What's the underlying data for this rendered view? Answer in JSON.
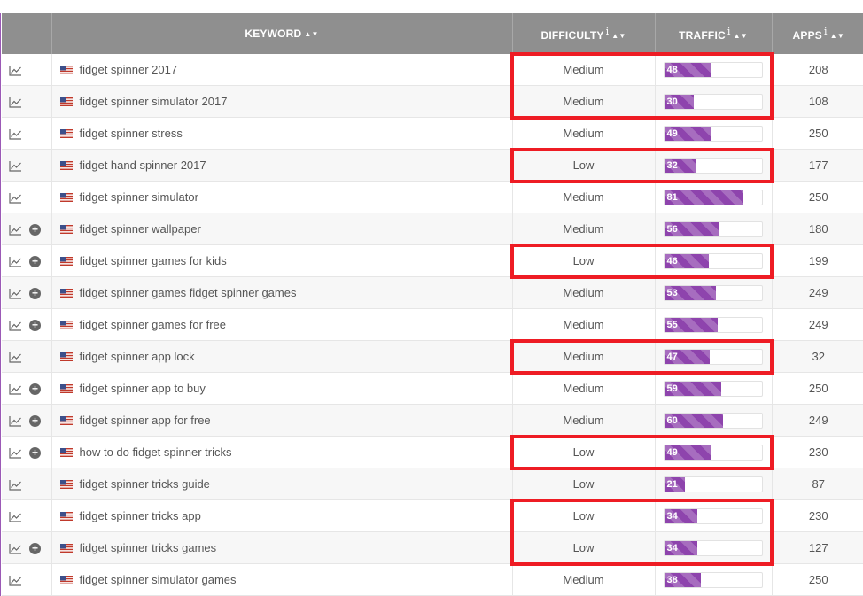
{
  "table": {
    "headers": {
      "keyword": "KEYWORD",
      "difficulty": "DIFFICULTY",
      "traffic": "TRAFFIC",
      "apps": "APPS",
      "info_glyph": "i",
      "sort_glyph": "▲▼"
    },
    "rows": [
      {
        "keyword": "fidget spinner 2017",
        "difficulty": "Medium",
        "traffic": 48,
        "apps": "208",
        "has_add": false,
        "highlighted": true
      },
      {
        "keyword": "fidget spinner simulator 2017",
        "difficulty": "Medium",
        "traffic": 30,
        "apps": "108",
        "has_add": false,
        "highlighted": true
      },
      {
        "keyword": "fidget spinner stress",
        "difficulty": "Medium",
        "traffic": 49,
        "apps": "250",
        "has_add": false,
        "highlighted": false
      },
      {
        "keyword": "fidget hand spinner 2017",
        "difficulty": "Low",
        "traffic": 32,
        "apps": "177",
        "has_add": false,
        "highlighted": true
      },
      {
        "keyword": "fidget spinner simulator",
        "difficulty": "Medium",
        "traffic": 81,
        "apps": "250",
        "has_add": false,
        "highlighted": false
      },
      {
        "keyword": "fidget spinner wallpaper",
        "difficulty": "Medium",
        "traffic": 56,
        "apps": "180",
        "has_add": true,
        "highlighted": false
      },
      {
        "keyword": "fidget spinner games for kids",
        "difficulty": "Low",
        "traffic": 46,
        "apps": "199",
        "has_add": true,
        "highlighted": true
      },
      {
        "keyword": "fidget spinner games fidget spinner games",
        "difficulty": "Medium",
        "traffic": 53,
        "apps": "249",
        "has_add": true,
        "highlighted": false
      },
      {
        "keyword": "fidget spinner games for free",
        "difficulty": "Medium",
        "traffic": 55,
        "apps": "249",
        "has_add": true,
        "highlighted": false
      },
      {
        "keyword": "fidget spinner app lock",
        "difficulty": "Medium",
        "traffic": 47,
        "apps": "32",
        "has_add": false,
        "highlighted": true
      },
      {
        "keyword": "fidget spinner app to buy",
        "difficulty": "Medium",
        "traffic": 59,
        "apps": "250",
        "has_add": true,
        "highlighted": false
      },
      {
        "keyword": "fidget spinner app for free",
        "difficulty": "Medium",
        "traffic": 60,
        "apps": "249",
        "has_add": true,
        "highlighted": false
      },
      {
        "keyword": "how to do fidget spinner tricks",
        "difficulty": "Low",
        "traffic": 49,
        "apps": "230",
        "has_add": true,
        "highlighted": true
      },
      {
        "keyword": "fidget spinner tricks guide",
        "difficulty": "Low",
        "traffic": 21,
        "apps": "87",
        "has_add": false,
        "highlighted": false
      },
      {
        "keyword": "fidget spinner tricks app",
        "difficulty": "Low",
        "traffic": 34,
        "apps": "230",
        "has_add": false,
        "highlighted": true
      },
      {
        "keyword": "fidget spinner tricks games",
        "difficulty": "Low",
        "traffic": 34,
        "apps": "127",
        "has_add": true,
        "highlighted": true
      },
      {
        "keyword": "fidget spinner simulator games",
        "difficulty": "Medium",
        "traffic": 38,
        "apps": "250",
        "has_add": false,
        "highlighted": false
      }
    ]
  },
  "icons": {
    "chart": "chart-icon",
    "add": "plus-circle-icon",
    "flag": "us-flag-icon",
    "add_glyph": "+"
  },
  "highlight_groups": [
    [
      0,
      1
    ],
    [
      3,
      3
    ],
    [
      6,
      6
    ],
    [
      9,
      9
    ],
    [
      12,
      12
    ],
    [
      14,
      15
    ]
  ],
  "colors": {
    "header_bg": "#8f8f8f",
    "bar_fill": "#8e44ad",
    "highlight": "#ee1c24",
    "accent_border": "#9b59b6"
  }
}
